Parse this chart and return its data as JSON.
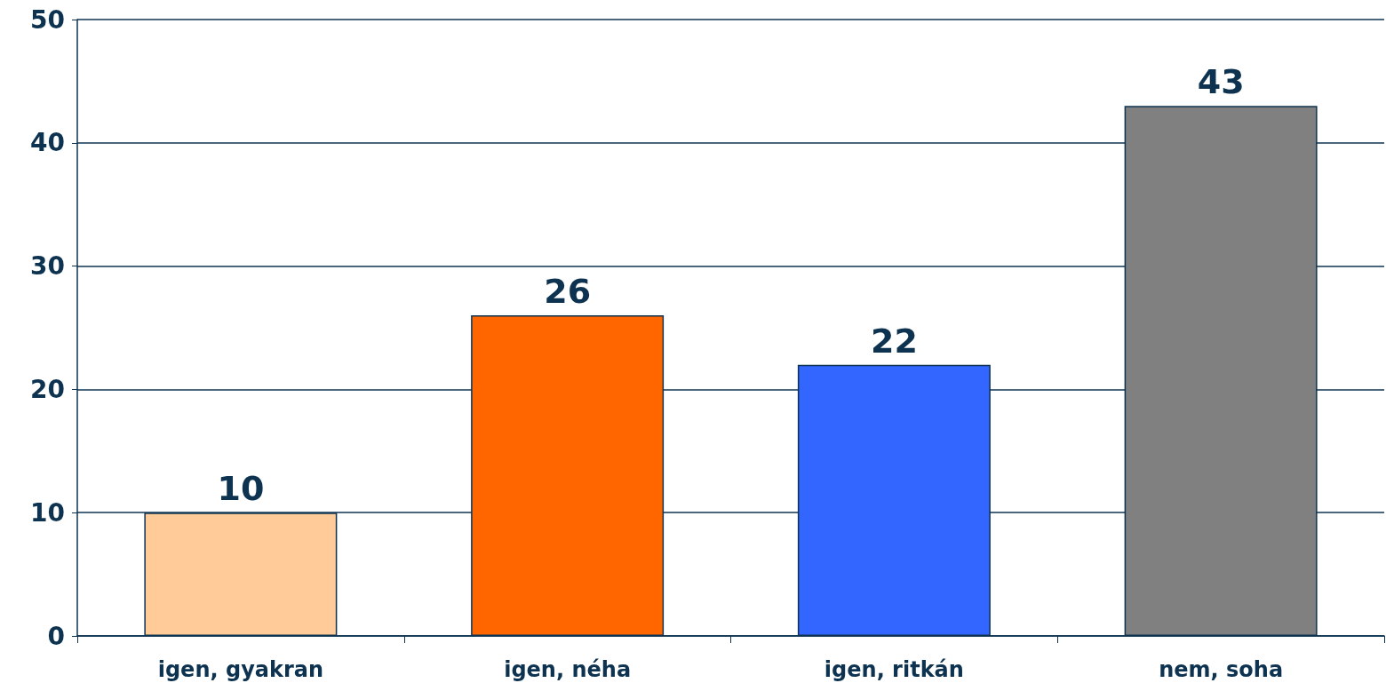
{
  "chart_data": {
    "type": "bar",
    "categories": [
      "igen, gyakran",
      "igen, néha",
      "igen, ritkán",
      "nem, soha"
    ],
    "values": [
      10,
      26,
      22,
      43
    ],
    "colors": [
      "#ffcc99",
      "#ff6600",
      "#3366ff",
      "#808080"
    ],
    "ylim": [
      0,
      50
    ],
    "yticks": [
      0,
      10,
      20,
      30,
      40,
      50
    ],
    "grid": "y",
    "data_labels": true
  }
}
